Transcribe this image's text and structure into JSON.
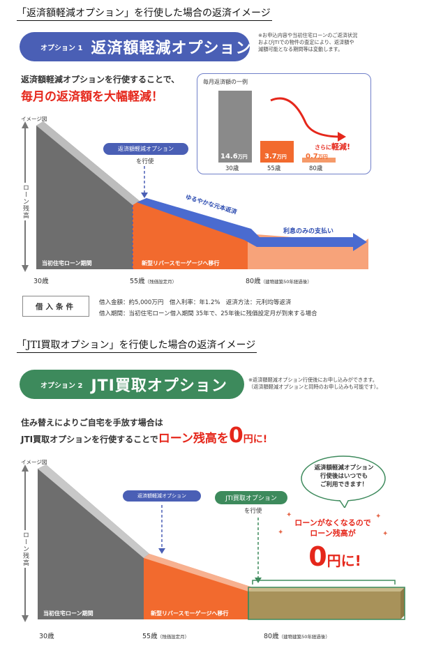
{
  "section1": {
    "heading": "「返済額軽減オプション」を行使した場合の返済イメージ",
    "option_number": "オプション 1",
    "option_name": "返済額軽減オプション",
    "note_lines": [
      "※お申込内容や当初住宅ローンのご返済状況",
      "およびJTIでの物件の査定により、返済額や",
      "減額可能となる期間等は変動します。"
    ],
    "lead_line1": "返済額軽減オプションを行使することで、",
    "lead_line2": "毎月の返済額を大幅軽減！",
    "image_label": "イメージ図",
    "y_axis_label": "ローン残高",
    "callout_label": "返済額軽減オプション",
    "callout_sub": "を行使",
    "arrow_text_1": "ゆるやかな元本返済",
    "arrow_text_2": "利息のみの支払い",
    "band_left": "当初住宅ローン期間",
    "band_right": "新型リバースモーゲージへ移行",
    "x_labels": [
      {
        "age": "30歳",
        "note": ""
      },
      {
        "age": "55歳",
        "note": "（残価設定月）"
      },
      {
        "age": "80歳",
        "note": "（建物建築50年経過後）"
      }
    ],
    "inset": {
      "title": "毎月返済額の一例",
      "further_prefix": "さらに",
      "further_word": "軽減!",
      "bars": [
        {
          "value": "14.6",
          "unit": "万円",
          "age": "30歳",
          "color": "#8a8a8a",
          "amount": 14.6
        },
        {
          "value": "3.7",
          "unit": "万円",
          "age": "55歳",
          "color": "#f26a2e",
          "amount": 3.7
        },
        {
          "value": "0.7",
          "unit": "万円",
          "age": "80歳",
          "color": "#f59a6a",
          "amount": 0.7
        }
      ]
    },
    "conditions_label": "借入条件",
    "conditions_line1": "借入金額：約5,000万円　借入利率：年1.2%　返済方法：元利均等返済",
    "conditions_line2": "借入期間：当初住宅ローン借入期間 35年で、25年後に残価設定月が到来する場合"
  },
  "section2": {
    "heading": "「JTI買取オプション」を行使した場合の返済イメージ",
    "option_number": "オプション 2",
    "option_name": "JTI買取オプション",
    "note_lines": [
      "※返済額軽減オプション行使後にお申し込みができます。",
      "（返済額軽減オプションと同時のお申し込みも可能です）。"
    ],
    "lead_line1": "住み替えによりご自宅を手放す場合は",
    "lead_line2_prefix": "JTI買取オプションを行使することで",
    "lead_red_a": "ローン残高を",
    "lead_big_zero": "0",
    "lead_red_b": "円に!",
    "image_label": "イメージ図",
    "y_axis_label": "ローン残高",
    "callout_left": "返済額軽減オプション",
    "callout_right": "JTI買取オプション",
    "callout_right_sub": "を行使",
    "bubble_lines": [
      "返済額軽減オプション",
      "行使後はいつでも",
      "ご利用できます！"
    ],
    "zero_line1": "ローンがなくなるので",
    "zero_line2": "ローン残高が",
    "zero_big": "0",
    "zero_suffix": "円に!",
    "band_left": "当初住宅ローン期間",
    "band_right": "新型リバースモーゲージへ移行",
    "x_labels": [
      {
        "age": "30歳",
        "note": ""
      },
      {
        "age": "55歳",
        "note": "（残価設定月）"
      },
      {
        "age": "80歳",
        "note": "（建物建築50年経過後）"
      }
    ]
  },
  "colors": {
    "option1_blue": "#4a5fb5",
    "option2_green": "#3d8a5c",
    "accent_red": "#e5271b",
    "orange": "#f26a2e",
    "light_orange": "#f7a37a",
    "gray": "#7d7d7d",
    "khaki": "#a8925a"
  }
}
